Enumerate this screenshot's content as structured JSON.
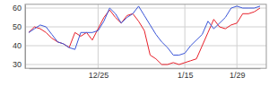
{
  "chart_data": {
    "type": "line",
    "categories": [
      null,
      null,
      null,
      null,
      null,
      null,
      null,
      null,
      null,
      null,
      null,
      null,
      "12/25",
      null,
      null,
      null,
      null,
      null,
      null,
      null,
      null,
      null,
      null,
      null,
      null,
      null,
      null,
      "1/15",
      null,
      null,
      null,
      null,
      null,
      null,
      null,
      null,
      "1/29",
      null,
      null,
      null,
      null
    ],
    "series": [
      {
        "color": "#e8202a",
        "values": [
          47,
          50,
          49,
          47,
          44,
          42,
          41,
          39,
          47,
          45,
          47,
          43,
          49,
          55,
          59,
          55,
          52,
          56,
          57,
          53,
          48,
          35,
          33,
          30,
          30,
          31,
          30,
          31,
          32,
          33,
          40,
          47,
          54,
          50,
          49,
          51,
          52,
          57,
          57,
          58,
          60
        ]
      },
      {
        "color": "#3a55d8",
        "values": [
          47,
          49,
          51,
          50,
          46,
          42,
          41,
          39,
          38,
          47,
          47,
          47,
          48,
          53,
          60,
          57,
          52,
          55,
          57,
          61,
          56,
          51,
          46,
          42,
          39,
          35,
          35,
          36,
          40,
          43,
          46,
          53,
          49,
          52,
          55,
          60,
          61,
          60,
          60,
          60,
          61
        ]
      }
    ],
    "ylim": [
      28,
      62
    ],
    "yticks": [
      30,
      40,
      50,
      60
    ],
    "grid": true
  }
}
